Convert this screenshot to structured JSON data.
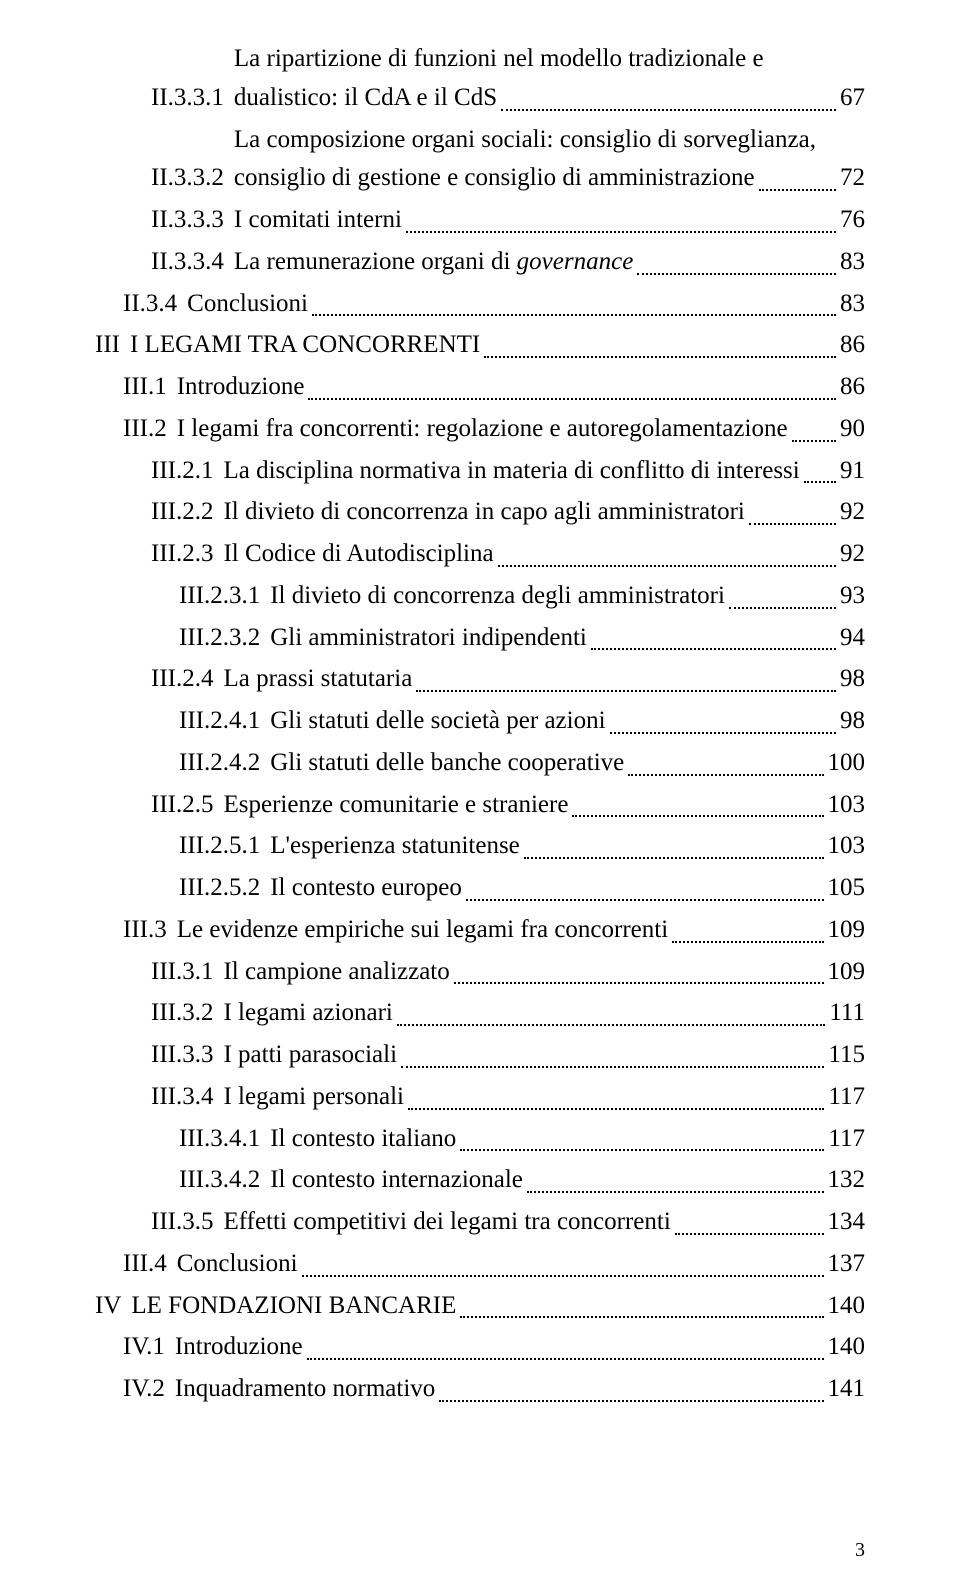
{
  "page_number": "3",
  "entries": [
    {
      "indent": 2,
      "num": "II.3.3.1",
      "wrap": [
        "La ripartizione di funzioni nel modello tradizionale e"
      ],
      "last": "dualistico: il CdA e il CdS",
      "pg": "67"
    },
    {
      "indent": 2,
      "num": "II.3.3.2",
      "wrap": [
        "La composizione organi sociali: consiglio di sorveglianza,"
      ],
      "last": "consiglio di gestione e consiglio di amministrazione",
      "pg": "72"
    },
    {
      "indent": 2,
      "num": "II.3.3.3",
      "last": "I comitati interni",
      "pg": "76"
    },
    {
      "indent": 2,
      "num": "II.3.3.4",
      "last_html": "La remunerazione organi di <span class='italic'>governance</span>",
      "pg": "83"
    },
    {
      "indent": 1,
      "num": "II.3.4",
      "last": "Conclusioni",
      "pg": "83"
    },
    {
      "indent": 0,
      "num": "III",
      "last": "I LEGAMI TRA CONCORRENTI",
      "pg": "86"
    },
    {
      "indent": 1,
      "num": "III.1",
      "last": "Introduzione",
      "pg": "86"
    },
    {
      "indent": 1,
      "num": "III.2",
      "last": "I legami fra concorrenti: regolazione e autoregolamentazione",
      "pg": "90"
    },
    {
      "indent": 2,
      "num": "III.2.1",
      "last": "La disciplina normativa in materia di conflitto di interessi",
      "pg": "91"
    },
    {
      "indent": 2,
      "num": "III.2.2",
      "last": "Il divieto di concorrenza in capo agli amministratori",
      "pg": "92"
    },
    {
      "indent": 2,
      "num": "III.2.3",
      "last": "Il Codice di Autodisciplina",
      "pg": "92"
    },
    {
      "indent": 3,
      "num": "III.2.3.1",
      "last": "Il divieto di concorrenza degli amministratori",
      "pg": "93"
    },
    {
      "indent": 3,
      "num": "III.2.3.2",
      "last": "Gli amministratori indipendenti",
      "pg": "94"
    },
    {
      "indent": 2,
      "num": "III.2.4",
      "last": "La prassi statutaria",
      "pg": "98"
    },
    {
      "indent": 3,
      "num": "III.2.4.1",
      "last": "Gli statuti delle società per azioni",
      "pg": "98"
    },
    {
      "indent": 3,
      "num": "III.2.4.2",
      "last": "Gli statuti delle banche cooperative",
      "pg": "100"
    },
    {
      "indent": 2,
      "num": "III.2.5",
      "last": "Esperienze  comunitarie e straniere",
      "pg": "103"
    },
    {
      "indent": 3,
      "num": "III.2.5.1",
      "last": "L'esperienza statunitense",
      "pg": "103"
    },
    {
      "indent": 3,
      "num": "III.2.5.2",
      "last": "Il contesto europeo",
      "pg": "105"
    },
    {
      "indent": 1,
      "num": "III.3",
      "last": "Le evidenze empiriche sui legami fra concorrenti",
      "pg": "109"
    },
    {
      "indent": 2,
      "num": "III.3.1",
      "last": "Il campione analizzato",
      "pg": "109"
    },
    {
      "indent": 2,
      "num": "III.3.2",
      "last": "I legami azionari",
      "pg": "111"
    },
    {
      "indent": 2,
      "num": "III.3.3",
      "last": "I patti parasociali",
      "pg": "115"
    },
    {
      "indent": 2,
      "num": "III.3.4",
      "last": "I legami personali",
      "pg": "117"
    },
    {
      "indent": 3,
      "num": "III.3.4.1",
      "last": "Il contesto italiano",
      "pg": "117"
    },
    {
      "indent": 3,
      "num": "III.3.4.2",
      "last": "Il contesto internazionale",
      "pg": "132"
    },
    {
      "indent": 2,
      "num": "III.3.5",
      "last": "Effetti competitivi dei legami tra concorrenti",
      "pg": "134"
    },
    {
      "indent": 1,
      "num": "III.4",
      "last": "Conclusioni",
      "pg": "137"
    },
    {
      "indent": 0,
      "num": "IV",
      "last": "LE FONDAZIONI BANCARIE",
      "pg": "140"
    },
    {
      "indent": 1,
      "num": "IV.1",
      "last": "Introduzione",
      "pg": "140"
    },
    {
      "indent": 1,
      "num": "IV.2",
      "last": "Inquadramento normativo",
      "pg": "141"
    }
  ]
}
